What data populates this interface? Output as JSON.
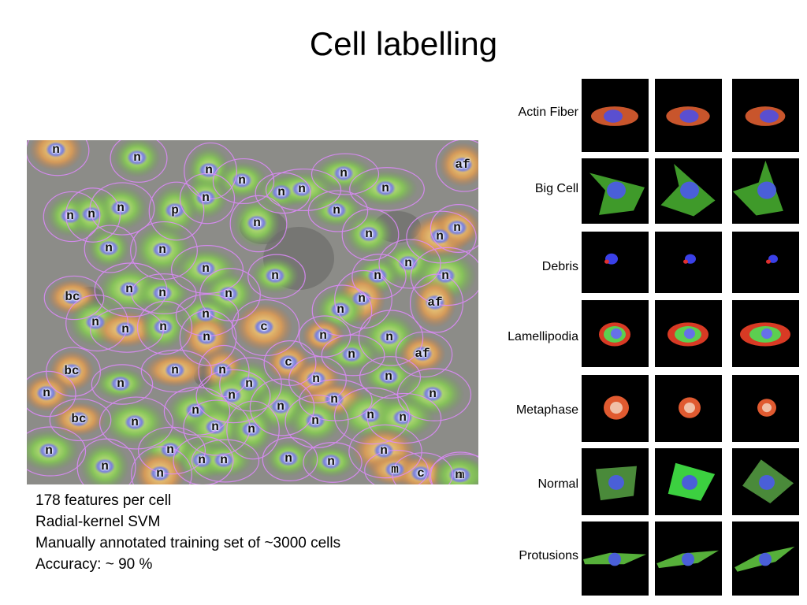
{
  "title": "Cell labelling",
  "mosaic": {
    "labels": [
      "n",
      "n",
      "n",
      "n",
      "n",
      "af",
      "n",
      "n",
      "n",
      "n",
      "n",
      "p",
      "n",
      "n",
      "n",
      "n",
      "n",
      "n",
      "n",
      "n",
      "n",
      "n",
      "n",
      "n",
      "n",
      "n",
      "n",
      "n",
      "bc",
      "n",
      "n",
      "n",
      "af",
      "n",
      "n",
      "n",
      "n",
      "c",
      "n",
      "n",
      "n",
      "bc",
      "c",
      "n",
      "af",
      "n",
      "n",
      "n",
      "n",
      "n",
      "n",
      "n",
      "n",
      "n",
      "n",
      "n",
      "bc",
      "n",
      "n",
      "n",
      "n",
      "n",
      "n",
      "n",
      "n",
      "n",
      "n",
      "n",
      "n",
      "n",
      "n",
      "m",
      "c",
      "n",
      "n",
      "n",
      "n"
    ]
  },
  "notes": [
    "178 features per cell",
    "Radial-kernel SVM",
    "Manually annotated training set of ~3000 cells",
    "Accuracy: ~ 90 %"
  ],
  "categories": [
    {
      "label": "Actin Fiber",
      "icon": "actin-fiber-cell-image"
    },
    {
      "label": "Big Cell",
      "icon": "big-cell-image"
    },
    {
      "label": "Debris",
      "icon": "debris-cell-image"
    },
    {
      "label": "Lamellipodia",
      "icon": "lamellipodia-cell-image"
    },
    {
      "label": "Metaphase",
      "icon": "metaphase-cell-image"
    },
    {
      "label": "Normal",
      "icon": "normal-cell-image"
    },
    {
      "label": "Protusions",
      "icon": "protusions-cell-image"
    }
  ]
}
